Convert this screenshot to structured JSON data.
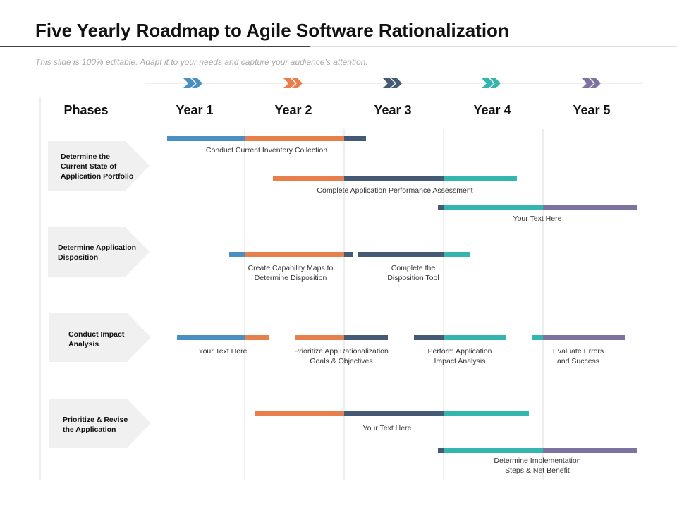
{
  "header": {
    "title": "Five Yearly Roadmap to Agile Software Rationalization",
    "subtitle": "This slide is 100% editable. Adapt it to your needs and capture your audience’s attention."
  },
  "columns": {
    "phases_label": "Phases",
    "years": [
      "Year 1",
      "Year 2",
      "Year 3",
      "Year 4",
      "Year 5"
    ]
  },
  "phases": [
    {
      "lines": [
        "Determine the",
        "Current State of",
        "Application Portfolio"
      ]
    },
    {
      "lines": [
        "Determine Application",
        "Disposition"
      ]
    },
    {
      "lines": [
        "Conduct Impact",
        "Analysis"
      ]
    },
    {
      "lines": [
        "Prioritize & Revise",
        "the Application"
      ]
    }
  ],
  "tasks": [
    {
      "lines": [
        "Conduct Current Inventory Collection"
      ]
    },
    {
      "lines": [
        "Complete Application  Performance Assessment"
      ]
    },
    {
      "lines": [
        "Your Text Here"
      ]
    },
    {
      "lines": [
        "Create Capability  Maps to",
        "Determine Disposition"
      ]
    },
    {
      "lines": [
        "Complete the",
        "Disposition  Tool"
      ]
    },
    {
      "lines": [
        "Your Text Here"
      ]
    },
    {
      "lines": [
        "Prioritize App Rationalization",
        "Goals & Objectives"
      ]
    },
    {
      "lines": [
        "Perform Application",
        "Impact Analysis"
      ]
    },
    {
      "lines": [
        "Evaluate  Errors",
        "and Success"
      ]
    },
    {
      "lines": [
        "Your Text Here"
      ]
    },
    {
      "lines": [
        "Determine Implementation",
        "Steps & Net Benefit"
      ]
    }
  ]
}
